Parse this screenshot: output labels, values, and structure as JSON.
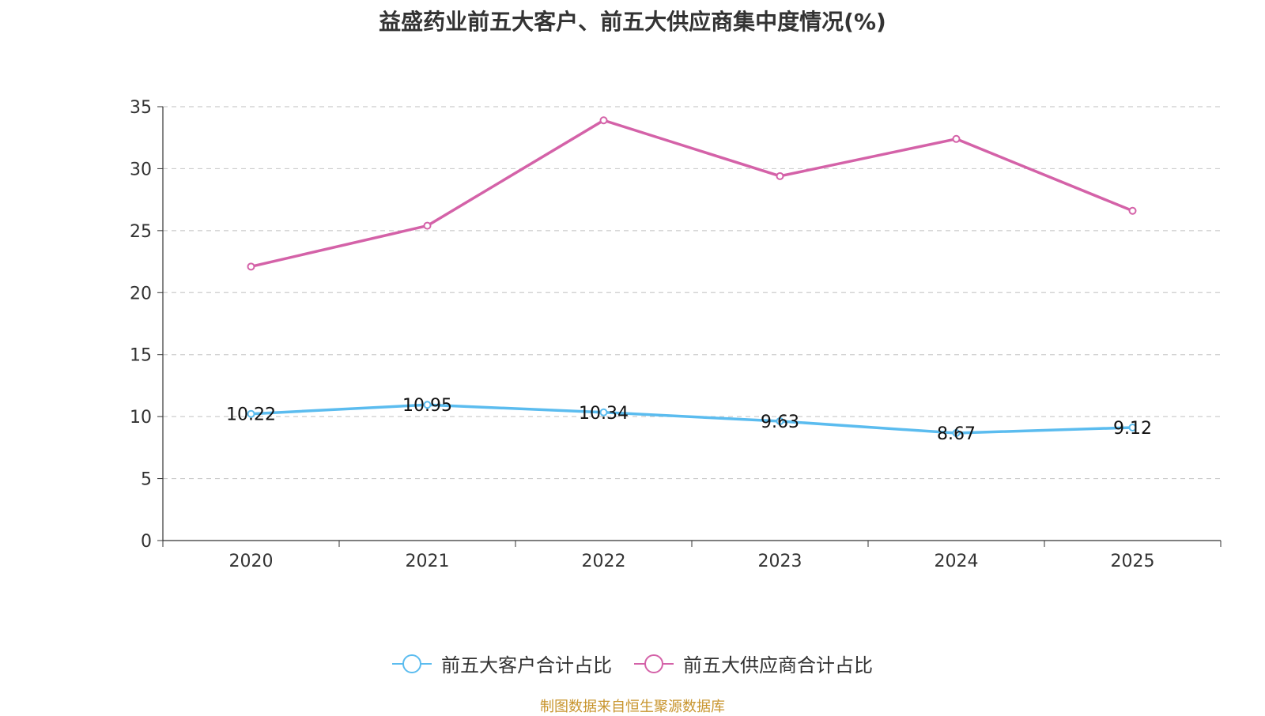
{
  "title": "益盛药业前五大客户、前五大供应商集中度情况(%)",
  "source_note": "制图数据来自恒生聚源数据库",
  "chart_data": {
    "type": "line",
    "title": "益盛药业前五大客户、前五大供应商集中度情况(%)",
    "categories": [
      "2020",
      "2021",
      "2022",
      "2023",
      "2024",
      "2025"
    ],
    "ylim": [
      0,
      35
    ],
    "yticks": [
      0,
      5,
      10,
      15,
      20,
      25,
      30,
      35
    ],
    "grid": true,
    "legend_position": "bottom",
    "series": [
      {
        "name": "前五大客户合计占比",
        "color": "#5bbcef",
        "values": [
          10.22,
          10.95,
          10.34,
          9.63,
          8.67,
          9.12
        ],
        "labels": [
          "10.22",
          "10.95",
          "10.34",
          "9.63",
          "8.67",
          "9.12"
        ]
      },
      {
        "name": "前五大供应商合计占比",
        "color": "#d462a8",
        "values": [
          22.1,
          25.4,
          33.9,
          29.4,
          32.4,
          26.6
        ]
      }
    ]
  }
}
